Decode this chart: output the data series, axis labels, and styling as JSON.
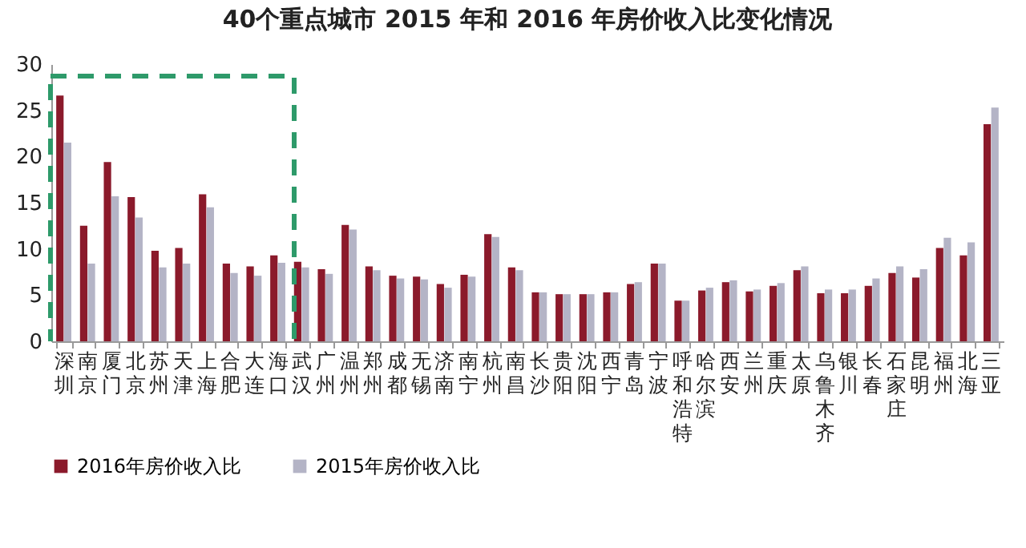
{
  "chart_data": {
    "type": "bar",
    "title": "40个重点城市 2015 年和 2016 年房价收入比变化情况",
    "categories": [
      "深圳",
      "南京",
      "厦门",
      "北京",
      "苏州",
      "天津",
      "上海",
      "合肥",
      "大连",
      "海口",
      "武汉",
      "广州",
      "温州",
      "郑州",
      "成都",
      "无锡",
      "济南",
      "南宁",
      "杭州",
      "南昌",
      "长沙",
      "贵阳",
      "沈阳",
      "西宁",
      "青岛",
      "宁波",
      "呼和浩特",
      "哈尔滨",
      "西安",
      "兰州",
      "重庆",
      "太原",
      "乌鲁木齐",
      "银川",
      "长春",
      "石家庄",
      "昆明",
      "福州",
      "北海",
      "三亚"
    ],
    "series": [
      {
        "name": "2016年房价收入比",
        "color": "#8b1a2b",
        "values": [
          26.6,
          12.5,
          19.4,
          15.6,
          9.8,
          10.1,
          15.9,
          8.4,
          8.1,
          9.3,
          8.6,
          7.8,
          12.6,
          8.1,
          7.1,
          7.0,
          6.2,
          7.2,
          11.6,
          8.0,
          5.3,
          5.1,
          5.1,
          5.3,
          6.2,
          8.4,
          4.4,
          5.5,
          6.4,
          5.4,
          6.0,
          7.7,
          5.2,
          5.2,
          6.0,
          7.4,
          6.9,
          10.1,
          9.3,
          23.5
        ]
      },
      {
        "name": "2015年房价收入比",
        "color": "#b4b4c6",
        "values": [
          21.5,
          8.4,
          15.7,
          13.4,
          8.0,
          8.4,
          14.5,
          7.4,
          7.1,
          8.5,
          8.0,
          7.3,
          12.1,
          7.7,
          6.8,
          6.7,
          5.8,
          7.0,
          11.3,
          7.7,
          5.3,
          5.1,
          5.1,
          5.3,
          6.4,
          8.4,
          4.4,
          5.8,
          6.6,
          5.6,
          6.3,
          8.1,
          5.6,
          5.6,
          6.8,
          8.1,
          7.8,
          11.2,
          10.7,
          25.3
        ]
      }
    ],
    "ylim": [
      0,
      30
    ],
    "yticks": [
      0,
      5,
      10,
      15,
      20,
      25,
      30
    ],
    "legend": "bottom"
  }
}
